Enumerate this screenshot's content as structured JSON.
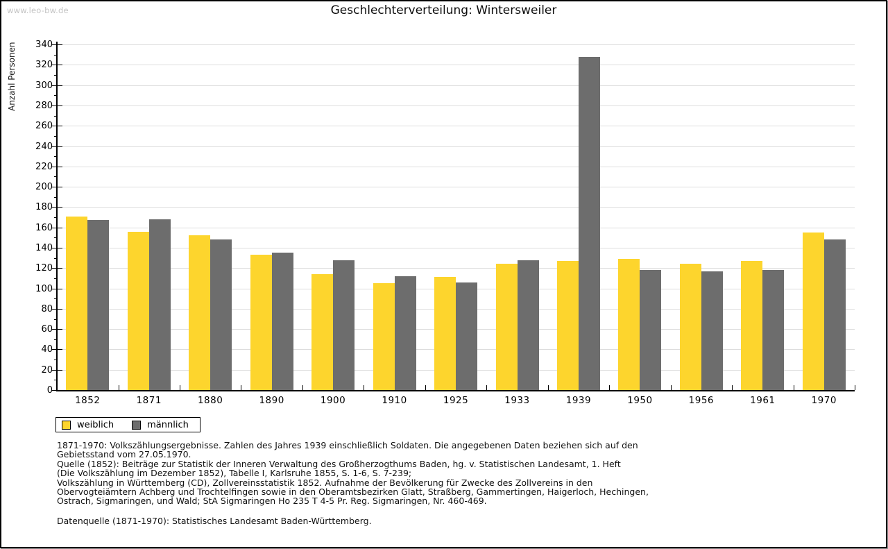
{
  "watermark": "www.leo-bw.de",
  "title": "Geschlechterverteilung: Wintersweiler",
  "y_axis": {
    "label": "Anzahl Personen",
    "min": 0,
    "max": 340,
    "major_step": 20,
    "minor_step": 10
  },
  "legend": [
    {
      "label": "weiblich",
      "color": "#fdd52d"
    },
    {
      "label": "männlich",
      "color": "#6d6d6d"
    }
  ],
  "chart_data": {
    "type": "bar",
    "title": "Geschlechterverteilung: Wintersweiler",
    "xlabel": "",
    "ylabel": "Anzahl Personen",
    "ylim": [
      0,
      340
    ],
    "grid": true,
    "legend_position": "bottom-left",
    "categories": [
      "1852",
      "1871",
      "1880",
      "1890",
      "1900",
      "1910",
      "1925",
      "1933",
      "1939",
      "1950",
      "1956",
      "1961",
      "1970"
    ],
    "series": [
      {
        "name": "weiblich",
        "color": "#fdd52d",
        "values": [
          171,
          156,
          152,
          133,
          114,
          105,
          111,
          124,
          127,
          129,
          124,
          127,
          155
        ]
      },
      {
        "name": "männlich",
        "color": "#6d6d6d",
        "values": [
          167,
          168,
          148,
          135,
          128,
          112,
          106,
          128,
          328,
          118,
          117,
          118,
          148
        ]
      }
    ]
  },
  "colors": {
    "weiblich": "#fdd52d",
    "maennlich": "#6d6d6d",
    "gridline": "#dddddd",
    "axis": "#000000",
    "watermark_text": "#c4c4c4"
  },
  "footnotes": {
    "lines": [
      "1871-1970: Volkszählungsergebnisse. Zahlen des Jahres 1939 einschließlich Soldaten. Die angegebenen Daten beziehen sich auf den",
      "Gebietsstand vom 27.05.1970.",
      "Quelle (1852): Beiträge zur Statistik der Inneren Verwaltung des Großherzogthums Baden, hg. v. Statistischen Landesamt, 1. Heft",
      "(Die Volkszählung im Dezember 1852), Tabelle I, Karlsruhe 1855, S. 1-6, S. 7-239;",
      "Volkszählung in Württemberg (CD), Zollvereinsstatistik 1852. Aufnahme der Bevölkerung für Zwecke des Zollvereins in den",
      "Obervogteiämtern Achberg und Trochtelfingen sowie in den Oberamtsbezirken Glatt, Straßberg, Gammertingen, Haigerloch, Hechingen,",
      "Ostrach, Sigmaringen, und Wald; StA Sigmaringen Ho 235 T 4-5 Pr. Reg. Sigmaringen, Nr. 460-469."
    ],
    "datenquelle": "Datenquelle (1871-1970): Statistisches Landesamt Baden-Württemberg."
  }
}
